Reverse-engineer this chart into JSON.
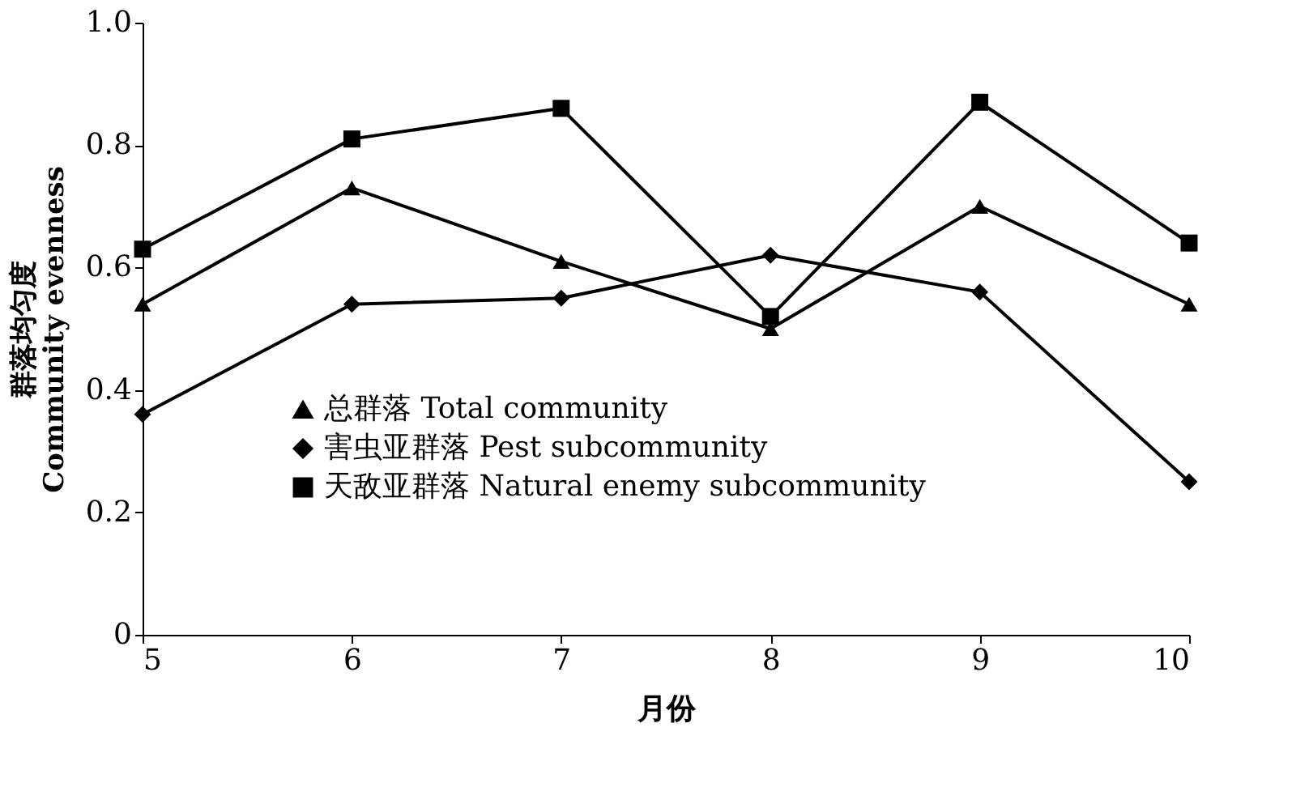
{
  "chart_data": {
    "type": "line",
    "xlabel": "月份",
    "ylabel": "群落均匀度\nCommunity evenness",
    "x": [
      5,
      6,
      7,
      8,
      9,
      10
    ],
    "xlim": [
      5,
      10
    ],
    "xticks": [
      5,
      6,
      7,
      8,
      9,
      10
    ],
    "ylim": [
      0,
      1
    ],
    "yticks": [
      0,
      0.2,
      0.4,
      0.6,
      0.8,
      {
        "value": 1,
        "label": "1.0"
      }
    ],
    "grid": false,
    "legend": "bottom",
    "line_style": "solid",
    "series": [
      {
        "name": "总群落 Total community",
        "color": "#000000",
        "marker": "triangle",
        "values": [
          0.54,
          0.73,
          0.61,
          0.5,
          0.7,
          0.54
        ]
      },
      {
        "name": "害虫亚群落 Pest subcommunity",
        "color": "#000000",
        "marker": "diamond",
        "values": [
          0.36,
          0.54,
          0.55,
          0.62,
          0.56,
          0.25
        ]
      },
      {
        "name": "天敌亚群落 Natural enemy subcommunity",
        "color": "#000000",
        "marker": "square",
        "values": [
          0.63,
          0.81,
          0.86,
          0.52,
          0.87,
          0.64
        ]
      }
    ]
  }
}
